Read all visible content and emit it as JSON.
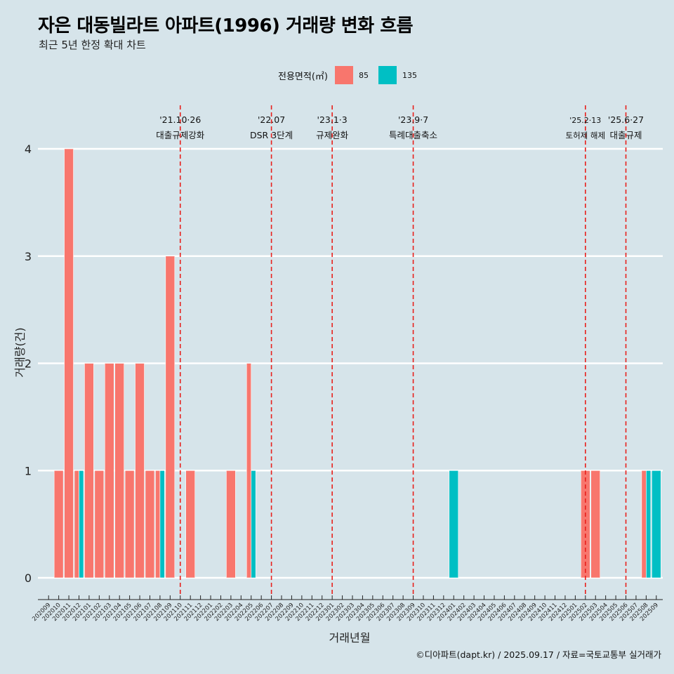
{
  "title": "자은 대동빌라트 아파트(1996) 거래량 변화 흐름",
  "subtitle": "최근 5년 한정 확대 차트",
  "caption": "©디아파트(dapt.kr) / 2025.09.17 / 자료=국토교통부 실거래가",
  "legend": {
    "title": "전용면적(㎡)",
    "items": [
      {
        "label": "85",
        "color": "#f8766d"
      },
      {
        "label": "135",
        "color": "#00bfc4"
      }
    ]
  },
  "chart_data": {
    "type": "bar",
    "xlabel": "거래년월",
    "ylabel": "거래량(건)",
    "ylim": [
      0,
      4
    ],
    "yticks": [
      0,
      1,
      2,
      3,
      4
    ],
    "grid": true,
    "legend_position": "top",
    "categories": [
      "202009",
      "202010",
      "202011",
      "202012",
      "202101",
      "202102",
      "202103",
      "202104",
      "202105",
      "202106",
      "202107",
      "202108",
      "202109",
      "202110",
      "202111",
      "202112",
      "202201",
      "202202",
      "202203",
      "202204",
      "202205",
      "202206",
      "202207",
      "202208",
      "202209",
      "202210",
      "202211",
      "202212",
      "202301",
      "202302",
      "202303",
      "202304",
      "202305",
      "202306",
      "202307",
      "202308",
      "202309",
      "202310",
      "202311",
      "202312",
      "202401",
      "202402",
      "202403",
      "202404",
      "202405",
      "202406",
      "202407",
      "202408",
      "202409",
      "202410",
      "202411",
      "202412",
      "202501",
      "202502",
      "202503",
      "202504",
      "202505",
      "202506",
      "202507",
      "202508",
      "202509"
    ],
    "bars": [
      {
        "month": "202010",
        "area": "85",
        "value": 1
      },
      {
        "month": "202011",
        "area": "85",
        "value": 4
      },
      {
        "month": "202012",
        "area": "85",
        "value": 1
      },
      {
        "month": "202012",
        "area": "135",
        "value": 1
      },
      {
        "month": "202101",
        "area": "85",
        "value": 2
      },
      {
        "month": "202102",
        "area": "85",
        "value": 1
      },
      {
        "month": "202103",
        "area": "85",
        "value": 2
      },
      {
        "month": "202104",
        "area": "85",
        "value": 2
      },
      {
        "month": "202105",
        "area": "85",
        "value": 1
      },
      {
        "month": "202106",
        "area": "85",
        "value": 2
      },
      {
        "month": "202107",
        "area": "85",
        "value": 1
      },
      {
        "month": "202108",
        "area": "85",
        "value": 1
      },
      {
        "month": "202108",
        "area": "135",
        "value": 1
      },
      {
        "month": "202109",
        "area": "85",
        "value": 3
      },
      {
        "month": "202111",
        "area": "85",
        "value": 1
      },
      {
        "month": "202203",
        "area": "85",
        "value": 1
      },
      {
        "month": "202205",
        "area": "85",
        "value": 2
      },
      {
        "month": "202205",
        "area": "135",
        "value": 1
      },
      {
        "month": "202401",
        "area": "135",
        "value": 1
      },
      {
        "month": "202502",
        "area": "85",
        "value": 1
      },
      {
        "month": "202503",
        "area": "85",
        "value": 1
      },
      {
        "month": "202508",
        "area": "85",
        "value": 1
      },
      {
        "month": "202508",
        "area": "135",
        "value": 1
      },
      {
        "month": "202509",
        "area": "135",
        "value": 1
      }
    ],
    "events": [
      {
        "month": "202110",
        "date": "'21.10·26",
        "label": "대출규제강화"
      },
      {
        "month": "202207",
        "date": "'22.07",
        "label": "DSR 3단계"
      },
      {
        "month": "202301",
        "date": "'23.1·3",
        "label": "규제완화"
      },
      {
        "month": "202309",
        "date": "'23.9·7",
        "label": "특례대출축소"
      },
      {
        "month": "202502",
        "date": "'25.2·13",
        "label": "토허제 해제"
      },
      {
        "month": "202506",
        "date": "'25.6·27",
        "label": "대출규제"
      }
    ]
  }
}
